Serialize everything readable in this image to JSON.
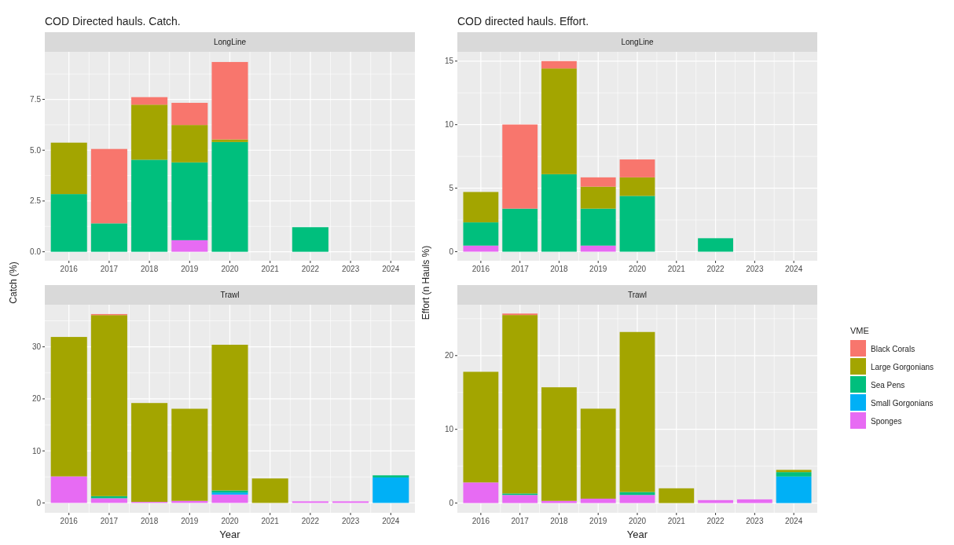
{
  "chart_data": [
    {
      "type": "bar",
      "stacked": true,
      "title": "COD Directed hauls. Catch.",
      "subtitle": "LongLine",
      "ylabel": "Catch (%)",
      "categories": [
        "2016",
        "2017",
        "2018",
        "2019",
        "2020",
        "2021",
        "2022",
        "2023",
        "2024"
      ],
      "ylim": [
        -0.44,
        9.84
      ],
      "yticks": [
        {
          "value": 0,
          "label": "0.0"
        },
        {
          "value": 2.5,
          "label": "2.5"
        },
        {
          "value": 5,
          "label": "5.0"
        },
        {
          "value": 7.5,
          "label": "7.5"
        }
      ],
      "grid": true,
      "series": [
        {
          "color": "#e76bf3",
          "values": [
            null,
            null,
            null,
            0.57,
            null,
            null,
            null,
            null,
            null
          ]
        },
        {
          "color": "#00bf7d",
          "values": [
            2.84,
            1.4,
            4.53,
            3.83,
            5.4,
            null,
            1.21,
            null,
            null
          ]
        },
        {
          "color": "#a3a500",
          "values": [
            2.53,
            null,
            2.71,
            1.84,
            0.13,
            null,
            null,
            null,
            null
          ]
        },
        {
          "color": "#f8766d",
          "values": [
            null,
            3.66,
            0.37,
            1.09,
            3.81,
            null,
            null,
            null,
            null
          ]
        }
      ]
    },
    {
      "type": "bar",
      "stacked": true,
      "title": "COD directed hauls. Effort.",
      "subtitle": "LongLine",
      "ylabel": "Effort (n Hauls %)",
      "categories": [
        "2016",
        "2017",
        "2018",
        "2019",
        "2020",
        "2021",
        "2022",
        "2023",
        "2024"
      ],
      "ylim": [
        -0.71,
        15.73
      ],
      "yticks": [
        0,
        5,
        10,
        15
      ],
      "grid": true,
      "series": [
        {
          "color": "#e76bf3",
          "values": [
            0.48,
            null,
            null,
            0.48,
            null,
            null,
            null,
            null,
            null
          ]
        },
        {
          "color": "#00bf7d",
          "values": [
            1.83,
            3.39,
            6.1,
            2.91,
            4.39,
            null,
            1.06,
            null,
            null
          ]
        },
        {
          "color": "#a3a500",
          "values": [
            2.39,
            null,
            8.32,
            1.73,
            1.46,
            null,
            null,
            null,
            null
          ]
        },
        {
          "color": "#f8766d",
          "values": [
            null,
            6.62,
            0.58,
            0.73,
            1.41,
            null,
            null,
            null,
            null
          ]
        }
      ]
    },
    {
      "type": "bar",
      "stacked": true,
      "subtitle": "Trawl",
      "xlabel": "Year",
      "categories": [
        "2016",
        "2017",
        "2018",
        "2019",
        "2020",
        "2021",
        "2022",
        "2023",
        "2024"
      ],
      "ylim": [
        -1.9,
        38.1
      ],
      "yticks": [
        0,
        10,
        20,
        30
      ],
      "grid": true,
      "series": [
        {
          "color": "#e76bf3",
          "values": [
            5.1,
            0.9,
            0.2,
            0.4,
            1.6,
            null,
            0.3,
            0.3,
            null
          ]
        },
        {
          "color": "#00b0f6",
          "values": [
            null,
            null,
            null,
            null,
            0.4,
            null,
            null,
            null,
            4.9
          ]
        },
        {
          "color": "#00bf7d",
          "values": [
            null,
            0.4,
            null,
            null,
            0.4,
            null,
            null,
            null,
            0.4
          ]
        },
        {
          "color": "#a3a500",
          "values": [
            26.8,
            34.8,
            19.0,
            17.7,
            28.0,
            4.7,
            null,
            null,
            null
          ]
        },
        {
          "color": "#f8766d",
          "values": [
            null,
            0.2,
            null,
            null,
            null,
            null,
            null,
            null,
            null
          ]
        }
      ]
    },
    {
      "type": "bar",
      "stacked": true,
      "subtitle": "Trawl",
      "xlabel": "Year",
      "categories": [
        "2016",
        "2017",
        "2018",
        "2019",
        "2020",
        "2021",
        "2022",
        "2023",
        "2024"
      ],
      "ylim": [
        -1.32,
        26.9
      ],
      "yticks": [
        0,
        10,
        20
      ],
      "grid": true,
      "legend": "right",
      "legend_title": "VME",
      "series": [
        {
          "name": "Sponges",
          "color": "#e76bf3",
          "values": [
            2.8,
            1.1,
            0.3,
            0.6,
            1.1,
            null,
            0.4,
            0.5,
            null
          ]
        },
        {
          "name": "Small Gorgonians",
          "color": "#00b0f6",
          "values": [
            null,
            null,
            null,
            null,
            null,
            null,
            null,
            null,
            3.6
          ]
        },
        {
          "name": "Sea Pens",
          "color": "#00bf7d",
          "values": [
            null,
            0.2,
            null,
            null,
            0.4,
            null,
            null,
            null,
            0.6
          ]
        },
        {
          "name": "Large Gorgonians",
          "color": "#a3a500",
          "values": [
            15.0,
            24.2,
            15.4,
            12.2,
            21.7,
            2.0,
            null,
            null,
            0.3
          ]
        },
        {
          "name": "Black Corals",
          "color": "#f8766d",
          "values": [
            null,
            0.2,
            null,
            null,
            null,
            null,
            null,
            null,
            null
          ]
        }
      ]
    }
  ]
}
